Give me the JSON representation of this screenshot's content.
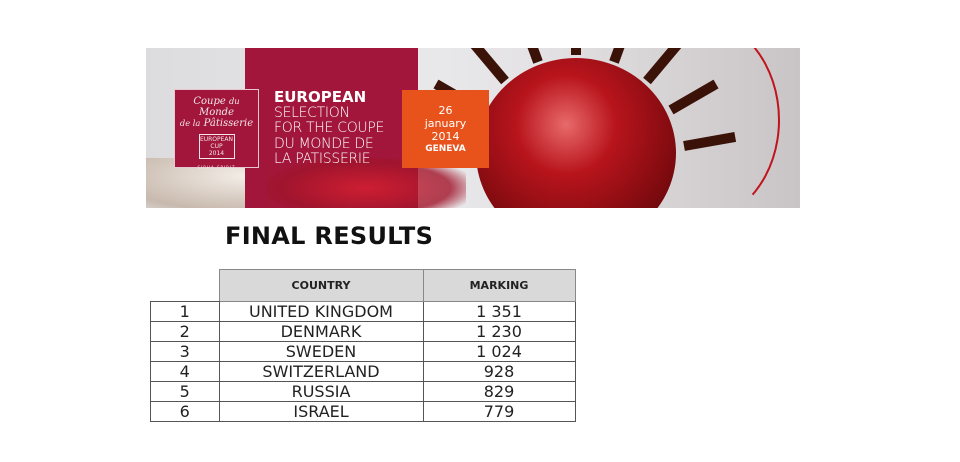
{
  "banner": {
    "logo_text": "Coupe du Monde de la Pâtisserie",
    "logo_badge": "EUROPEAN CUP 2014",
    "logo_tagline": "SIRHA SPIRIT",
    "title_lines": [
      "EUROPEAN",
      "SELECTION",
      "FOR THE COUPE",
      "DU MONDE DE",
      "LA PATISSERIE"
    ],
    "date_day": "26",
    "date_month": "january",
    "date_year": "2014",
    "date_city": "GENEVA",
    "colors": {
      "panel": "#a2163b",
      "date_box": "#e8531c"
    }
  },
  "heading": "FINAL RESULTS",
  "table": {
    "headers": [
      "",
      "COUNTRY",
      "MARKING"
    ],
    "rows": [
      [
        "1",
        "UNITED KINGDOM",
        "1 351"
      ],
      [
        "2",
        "DENMARK",
        "1 230"
      ],
      [
        "3",
        "SWEDEN",
        "1 024"
      ],
      [
        "4",
        "SWITZERLAND",
        "928"
      ],
      [
        "5",
        "RUSSIA",
        "829"
      ],
      [
        "6",
        "ISRAEL",
        "779"
      ]
    ]
  }
}
